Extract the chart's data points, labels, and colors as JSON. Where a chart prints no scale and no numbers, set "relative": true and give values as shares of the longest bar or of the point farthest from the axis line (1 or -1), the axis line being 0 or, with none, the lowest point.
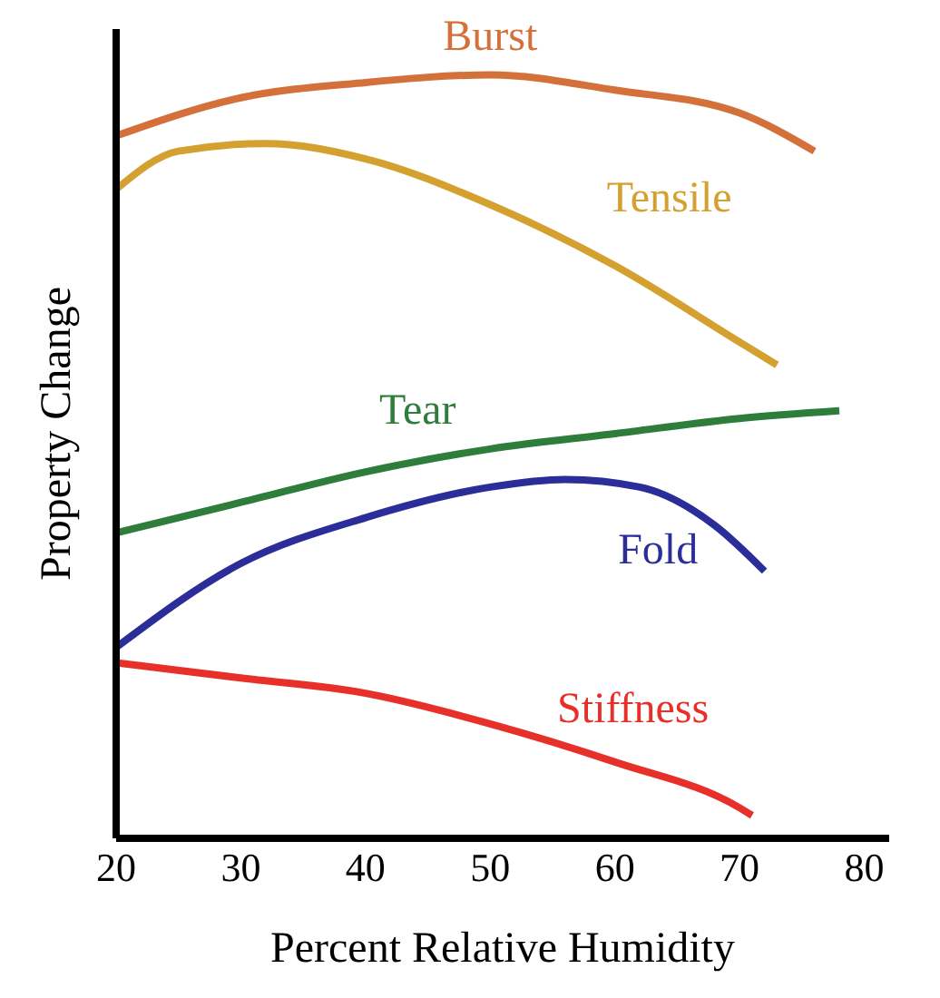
{
  "chart_data": {
    "type": "line",
    "relative": true,
    "xlabel": "Percent Relative Humidity",
    "ylabel": "Property Change",
    "xlim": [
      20,
      82
    ],
    "xticks": [
      20,
      30,
      40,
      50,
      60,
      70,
      80
    ],
    "grid": false,
    "legend": false,
    "marker": "none",
    "line_style": "solid",
    "series": [
      {
        "name": "Burst",
        "color": "#d4703a",
        "x": [
          20,
          30,
          40,
          50,
          60,
          70,
          76
        ],
        "values": [
          0.92,
          0.97,
          0.99,
          1.0,
          0.98,
          0.95,
          0.9
        ]
      },
      {
        "name": "Tensile",
        "color": "#d4a030",
        "x": [
          20,
          25,
          32,
          40,
          50,
          60,
          70,
          73
        ],
        "values": [
          0.85,
          0.9,
          0.91,
          0.89,
          0.83,
          0.75,
          0.65,
          0.62
        ]
      },
      {
        "name": "Tear",
        "color": "#2e7d3a",
        "x": [
          20,
          30,
          40,
          50,
          60,
          70,
          78
        ],
        "values": [
          0.4,
          0.44,
          0.48,
          0.51,
          0.53,
          0.55,
          0.56
        ]
      },
      {
        "name": "Fold",
        "color": "#2b2e99",
        "x": [
          20,
          30,
          40,
          50,
          56,
          62,
          68,
          72
        ],
        "values": [
          0.25,
          0.36,
          0.42,
          0.46,
          0.47,
          0.46,
          0.41,
          0.35
        ]
      },
      {
        "name": "Stiffness",
        "color": "#e8302a",
        "x": [
          20,
          30,
          40,
          50,
          60,
          70,
          71
        ],
        "values": [
          0.23,
          0.21,
          0.19,
          0.15,
          0.1,
          0.04,
          0.03
        ]
      }
    ]
  }
}
